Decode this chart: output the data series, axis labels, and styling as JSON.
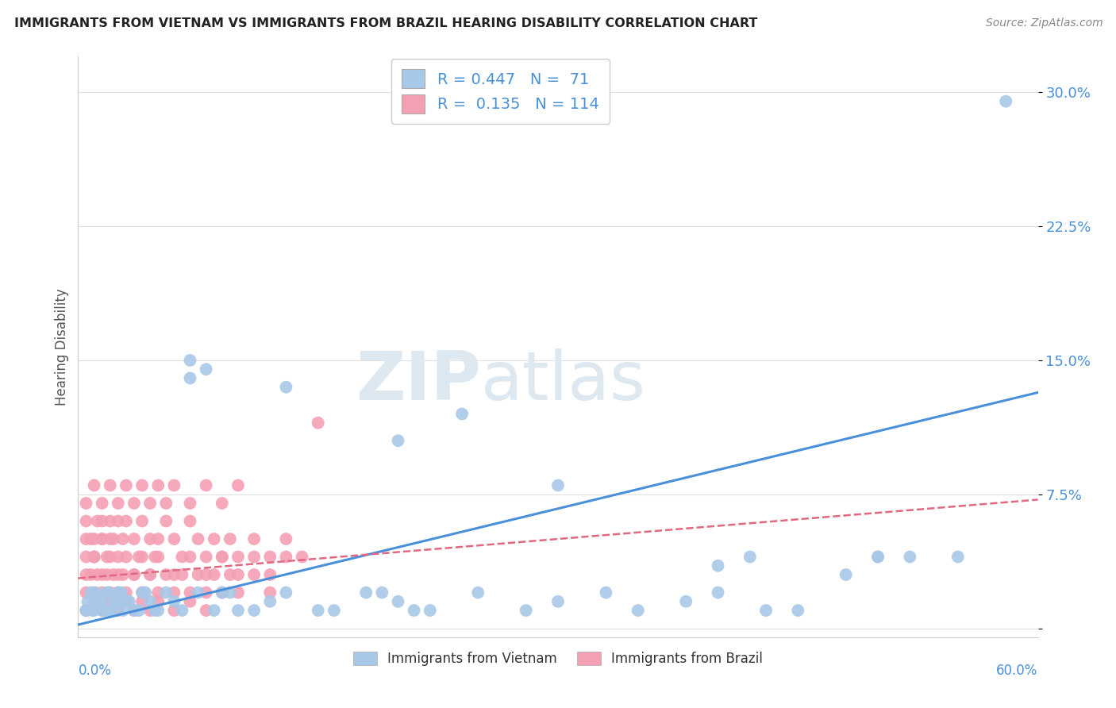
{
  "title": "IMMIGRANTS FROM VIETNAM VS IMMIGRANTS FROM BRAZIL HEARING DISABILITY CORRELATION CHART",
  "source": "Source: ZipAtlas.com",
  "ylabel": "Hearing Disability",
  "y_ticks": [
    0.0,
    0.075,
    0.15,
    0.225,
    0.3
  ],
  "y_tick_labels": [
    "",
    "7.5%",
    "15.0%",
    "22.5%",
    "30.0%"
  ],
  "x_lim": [
    0.0,
    0.6
  ],
  "y_lim": [
    -0.005,
    0.32
  ],
  "vietnam_color": "#a8c8e8",
  "brazil_color": "#f4a0b4",
  "vietnam_line_color": "#4a90d9",
  "brazil_line_color": "#e06880",
  "vietnam_R": 0.447,
  "vietnam_N": 71,
  "brazil_R": 0.135,
  "brazil_N": 114,
  "legend_R_color": "#4a90d9",
  "watermark_color": "#dde8f0",
  "background_color": "#ffffff",
  "grid_color": "#e0e0e0",
  "vietnam_line_start_y": 0.002,
  "vietnam_line_end_y": 0.132,
  "brazil_line_start_y": 0.028,
  "brazil_line_end_y": 0.072,
  "vietnam_scatter_x": [
    0.005,
    0.008,
    0.01,
    0.012,
    0.015,
    0.018,
    0.02,
    0.022,
    0.025,
    0.028,
    0.03,
    0.035,
    0.04,
    0.045,
    0.05,
    0.06,
    0.07,
    0.08,
    0.09,
    0.1,
    0.12,
    0.15,
    0.18,
    0.2,
    0.22,
    0.25,
    0.3,
    0.35,
    0.4,
    0.45,
    0.5,
    0.55,
    0.006,
    0.009,
    0.011,
    0.014,
    0.017,
    0.019,
    0.021,
    0.024,
    0.027,
    0.032,
    0.038,
    0.042,
    0.048,
    0.055,
    0.065,
    0.075,
    0.085,
    0.095,
    0.11,
    0.13,
    0.16,
    0.19,
    0.21,
    0.24,
    0.28,
    0.33,
    0.38,
    0.43,
    0.48,
    0.07,
    0.13,
    0.2,
    0.3,
    0.4,
    0.42,
    0.5,
    0.52,
    0.005,
    0.58
  ],
  "vietnam_scatter_y": [
    0.01,
    0.02,
    0.01,
    0.015,
    0.01,
    0.02,
    0.01,
    0.015,
    0.02,
    0.01,
    0.015,
    0.01,
    0.02,
    0.015,
    0.01,
    0.015,
    0.15,
    0.145,
    0.02,
    0.01,
    0.015,
    0.01,
    0.02,
    0.015,
    0.01,
    0.02,
    0.015,
    0.01,
    0.02,
    0.01,
    0.04,
    0.04,
    0.015,
    0.01,
    0.02,
    0.015,
    0.01,
    0.02,
    0.01,
    0.015,
    0.02,
    0.015,
    0.01,
    0.02,
    0.01,
    0.02,
    0.01,
    0.02,
    0.01,
    0.02,
    0.01,
    0.02,
    0.01,
    0.02,
    0.01,
    0.12,
    0.01,
    0.02,
    0.015,
    0.01,
    0.03,
    0.14,
    0.135,
    0.105,
    0.08,
    0.035,
    0.04,
    0.04,
    0.04,
    0.01,
    0.295
  ],
  "brazil_scatter_x": [
    0.005,
    0.008,
    0.01,
    0.012,
    0.015,
    0.018,
    0.02,
    0.022,
    0.025,
    0.028,
    0.03,
    0.035,
    0.038,
    0.04,
    0.045,
    0.048,
    0.05,
    0.055,
    0.06,
    0.065,
    0.07,
    0.075,
    0.08,
    0.085,
    0.09,
    0.095,
    0.1,
    0.11,
    0.12,
    0.13,
    0.14,
    0.15,
    0.005,
    0.008,
    0.01,
    0.012,
    0.015,
    0.018,
    0.02,
    0.022,
    0.025,
    0.028,
    0.03,
    0.035,
    0.04,
    0.045,
    0.05,
    0.055,
    0.06,
    0.065,
    0.07,
    0.075,
    0.08,
    0.085,
    0.09,
    0.095,
    0.1,
    0.11,
    0.12,
    0.005,
    0.01,
    0.015,
    0.02,
    0.025,
    0.03,
    0.035,
    0.04,
    0.045,
    0.05,
    0.055,
    0.06,
    0.07,
    0.08,
    0.09,
    0.1,
    0.005,
    0.01,
    0.015,
    0.02,
    0.025,
    0.03,
    0.035,
    0.04,
    0.045,
    0.05,
    0.06,
    0.07,
    0.08,
    0.005,
    0.01,
    0.015,
    0.02,
    0.025,
    0.03,
    0.035,
    0.04,
    0.045,
    0.05,
    0.06,
    0.07,
    0.08,
    0.09,
    0.1,
    0.11,
    0.12,
    0.13,
    0.005,
    0.01,
    0.015,
    0.02,
    0.025,
    0.005,
    0.01,
    0.015
  ],
  "brazil_scatter_y": [
    0.04,
    0.05,
    0.04,
    0.06,
    0.05,
    0.04,
    0.06,
    0.05,
    0.04,
    0.05,
    0.06,
    0.05,
    0.04,
    0.06,
    0.05,
    0.04,
    0.05,
    0.06,
    0.05,
    0.04,
    0.06,
    0.05,
    0.04,
    0.05,
    0.04,
    0.05,
    0.04,
    0.05,
    0.04,
    0.05,
    0.04,
    0.115,
    0.02,
    0.03,
    0.02,
    0.03,
    0.02,
    0.03,
    0.02,
    0.03,
    0.02,
    0.03,
    0.02,
    0.03,
    0.02,
    0.03,
    0.02,
    0.03,
    0.02,
    0.03,
    0.02,
    0.03,
    0.02,
    0.03,
    0.02,
    0.03,
    0.02,
    0.03,
    0.02,
    0.07,
    0.08,
    0.07,
    0.08,
    0.07,
    0.08,
    0.07,
    0.08,
    0.07,
    0.08,
    0.07,
    0.08,
    0.07,
    0.08,
    0.07,
    0.08,
    0.01,
    0.015,
    0.01,
    0.015,
    0.01,
    0.015,
    0.01,
    0.015,
    0.01,
    0.015,
    0.01,
    0.015,
    0.01,
    0.03,
    0.04,
    0.03,
    0.04,
    0.03,
    0.04,
    0.03,
    0.04,
    0.03,
    0.04,
    0.03,
    0.04,
    0.03,
    0.04,
    0.03,
    0.04,
    0.03,
    0.04,
    0.06,
    0.05,
    0.06,
    0.05,
    0.06,
    0.05,
    0.04,
    0.05
  ]
}
